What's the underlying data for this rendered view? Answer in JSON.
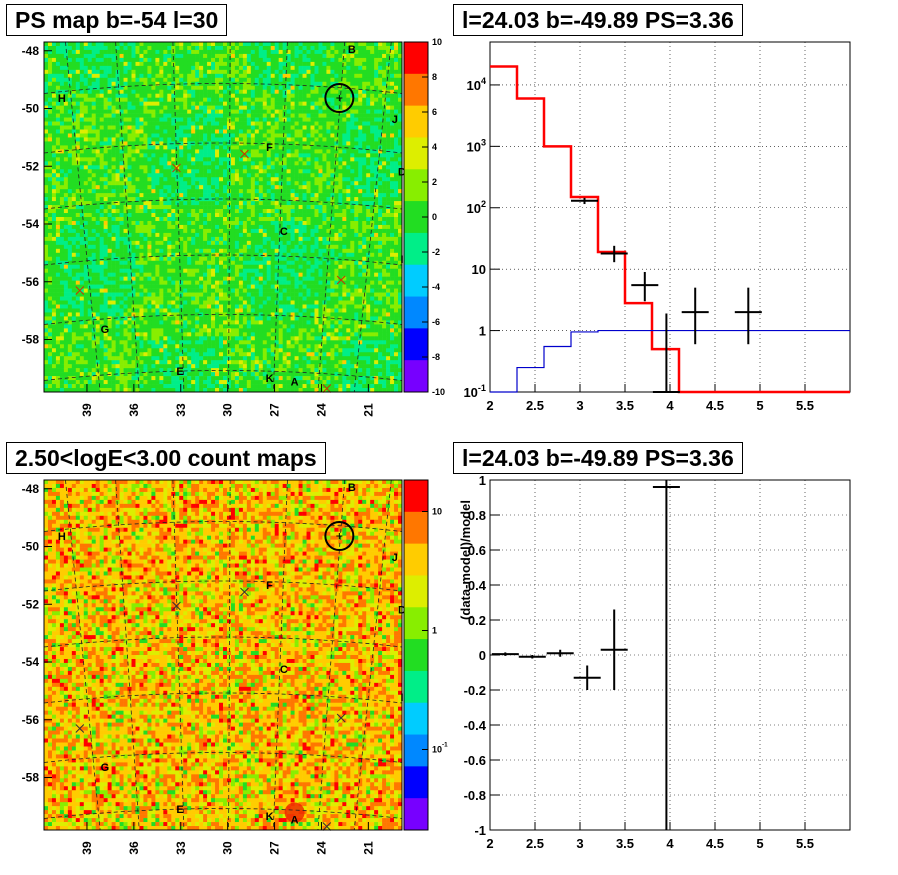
{
  "panels": {
    "map1": {
      "title": "PS map b=-54 l=30"
    },
    "spec": {
      "title": "l=24.03 b=-49.89 PS=3.36"
    },
    "map2": {
      "title": "2.50<logE<3.00 count maps"
    },
    "resid": {
      "title": "l=24.03 b=-49.89 PS=3.36"
    }
  },
  "chart_data": [
    {
      "type": "heatmap",
      "title": "PS map b=-54 l=30",
      "xlabel": "",
      "ylabel": "",
      "x_ticks": [
        "39",
        "36",
        "33",
        "30",
        "27",
        "24",
        "21"
      ],
      "y_ticks": [
        "-48",
        "-50",
        "-52",
        "-54",
        "-56",
        "-58"
      ],
      "colorbar": {
        "min": -10,
        "max": 10,
        "ticks": [
          "10",
          "8",
          "6",
          "4",
          "2",
          "0",
          "-2",
          "-4",
          "-6",
          "-8",
          "-10"
        ]
      },
      "markers": [
        {
          "label": "B"
        },
        {
          "label": "H"
        },
        {
          "label": "J"
        },
        {
          "label": "F"
        },
        {
          "label": "D"
        },
        {
          "label": "C"
        },
        {
          "label": "I"
        },
        {
          "label": "G"
        },
        {
          "label": "E"
        },
        {
          "label": "K"
        },
        {
          "label": "A"
        }
      ],
      "circle": {
        "l": 24.03,
        "b": -49.89
      },
      "colors": [
        "#7700ff",
        "#0000ff",
        "#0088ff",
        "#00ccff",
        "#00ee88",
        "#22dd22",
        "#88ee00",
        "#ddee00",
        "#ffcc00",
        "#ff7700",
        "#ff0000"
      ]
    },
    {
      "type": "line",
      "title": "l=24.03 b=-49.89 PS=3.36",
      "xlabel": "",
      "ylabel": "",
      "xlim": [
        2,
        6
      ],
      "ylim": [
        0.1,
        50000
      ],
      "yscale": "log",
      "x_ticks": [
        "2",
        "2.5",
        "3",
        "3.5",
        "4",
        "4.5",
        "5",
        "5.5"
      ],
      "y_ticks": [
        "10^4",
        "10^3",
        "10^2",
        "10",
        "1",
        "10^-1"
      ],
      "grid": true,
      "series": [
        {
          "color": "#ff0000",
          "kind": "step",
          "edges": [
            2.0,
            2.3,
            2.6,
            2.9,
            3.2,
            3.5,
            3.8,
            4.1,
            4.4,
            4.7,
            5.0,
            6.0
          ],
          "values": [
            20000,
            6000,
            1000,
            150,
            19,
            2.8,
            0.5,
            0.1,
            0.1,
            0.1,
            0.1
          ]
        },
        {
          "color": "#0000cc",
          "kind": "step",
          "edges": [
            2.0,
            2.3,
            2.6,
            2.9,
            3.2,
            3.5,
            3.8,
            4.1,
            4.4,
            4.7,
            5.0,
            6.0
          ],
          "values": [
            0.05,
            0.25,
            0.55,
            0.95,
            1.0,
            1.0,
            1.0,
            1.0,
            1.0,
            1.0,
            1.0
          ]
        },
        {
          "color": "#000000",
          "kind": "errorbar",
          "points": [
            {
              "x": 3.05,
              "y": 130,
              "xerr": 0.15,
              "ylo": 115,
              "yhi": 145
            },
            {
              "x": 3.38,
              "y": 18,
              "xerr": 0.15,
              "ylo": 13,
              "yhi": 24
            },
            {
              "x": 3.72,
              "y": 5.5,
              "xerr": 0.15,
              "ylo": 3.0,
              "yhi": 9.0
            },
            {
              "x": 3.96,
              "y": 0.1,
              "xerr": 0.15,
              "ylo": 0.1,
              "yhi": 1.9
            },
            {
              "x": 4.28,
              "y": 2.0,
              "xerr": 0.15,
              "ylo": 0.6,
              "yhi": 5.0
            },
            {
              "x": 4.87,
              "y": 2.0,
              "xerr": 0.15,
              "ylo": 0.6,
              "yhi": 5.0
            }
          ]
        }
      ]
    },
    {
      "type": "heatmap",
      "title": "2.50<logE<3.00 count maps",
      "xlabel": "",
      "ylabel": "",
      "x_ticks": [
        "39",
        "36",
        "33",
        "30",
        "27",
        "24",
        "21"
      ],
      "y_ticks": [
        "-48",
        "-50",
        "-52",
        "-54",
        "-56",
        "-58"
      ],
      "colorbar": {
        "scale": "log",
        "ticks": [
          "10",
          "1",
          "10^-1"
        ]
      },
      "markers": [
        {
          "label": "B"
        },
        {
          "label": "H"
        },
        {
          "label": "J"
        },
        {
          "label": "F"
        },
        {
          "label": "D"
        },
        {
          "label": "C"
        },
        {
          "label": "I"
        },
        {
          "label": "G"
        },
        {
          "label": "E"
        },
        {
          "label": "K"
        },
        {
          "label": "A"
        }
      ],
      "circle": {
        "l": 24.03,
        "b": -49.89
      },
      "colors": [
        "#7700ff",
        "#0000ff",
        "#0088ff",
        "#00ccff",
        "#00ee88",
        "#22dd22",
        "#88ee00",
        "#ddee00",
        "#ffcc00",
        "#ff7700",
        "#ff0000"
      ]
    },
    {
      "type": "scatter",
      "title": "l=24.03 b=-49.89 PS=3.36",
      "xlabel": "",
      "ylabel": "(data-model)/model",
      "xlim": [
        2,
        6
      ],
      "ylim": [
        -1,
        1
      ],
      "x_ticks": [
        "2",
        "2.5",
        "3",
        "3.5",
        "4",
        "4.5",
        "5",
        "5.5"
      ],
      "y_ticks": [
        "1",
        "0.8",
        "0.6",
        "0.4",
        "0.2",
        "0",
        "-0.2",
        "-0.4",
        "-0.6",
        "-0.8",
        "-1"
      ],
      "grid": true,
      "points": [
        {
          "x": 2.17,
          "y": 0.005,
          "xerr": 0.15,
          "ylo": -0.005,
          "yhi": 0.015
        },
        {
          "x": 2.47,
          "y": -0.01,
          "xerr": 0.15,
          "ylo": -0.02,
          "yhi": 0.0
        },
        {
          "x": 2.78,
          "y": 0.01,
          "xerr": 0.15,
          "ylo": -0.01,
          "yhi": 0.03
        },
        {
          "x": 3.08,
          "y": -0.13,
          "xerr": 0.15,
          "ylo": -0.2,
          "yhi": -0.06
        },
        {
          "x": 3.38,
          "y": 0.03,
          "xerr": 0.15,
          "ylo": -0.2,
          "yhi": 0.26
        },
        {
          "x": 3.96,
          "y": 0.96,
          "xerr": 0.15,
          "ylo": -1.0,
          "yhi": 1.0
        }
      ]
    }
  ]
}
